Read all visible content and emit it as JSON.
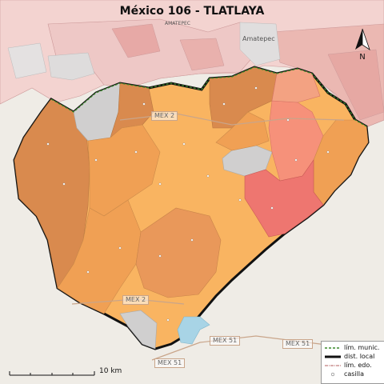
{
  "title": "México 106 - TLATLAYA",
  "labels": {
    "road_mex2_top": "MEX 2",
    "road_mex2_bottom": "MEX 2",
    "road_mex51_a": "MEX 51",
    "road_mex51_b": "MEX 51",
    "road_mex51_c": "MEX 51",
    "town_amatepec": "Amatepec",
    "town_amatepec_small": "AMATEPEC"
  },
  "legend": {
    "municipal_limit": "lím. munic.",
    "local_district": "dist. local",
    "state_limit": "lím. edo.",
    "polling_station": "casilla"
  },
  "scale": {
    "label": "10 km"
  },
  "north_arrow": {
    "letter": "N"
  },
  "colors": {
    "background": "#efece6",
    "district_light": "#f9b461",
    "district_mid": "#f0a054",
    "district_dark": "#d98a4e",
    "district_pink": "#f6917a",
    "district_red": "#ee7670",
    "no_data": "#d0cfcf",
    "outside_pink": "#f3d3d0",
    "municipal_limit": "#3a8a2a",
    "district_border": "#111111",
    "state_limit": "#b35d5d"
  }
}
